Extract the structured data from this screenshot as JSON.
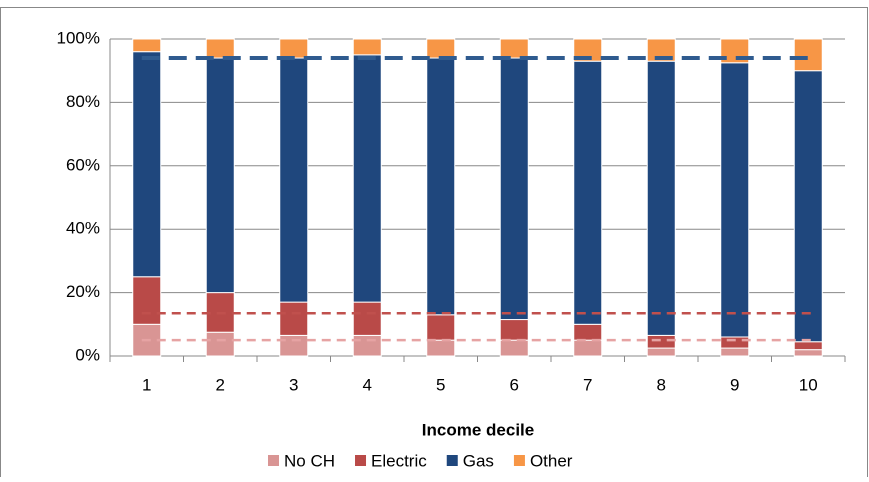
{
  "chart_data": {
    "type": "bar",
    "stacked": true,
    "x_label": "Income decile",
    "categories": [
      "1",
      "2",
      "3",
      "4",
      "5",
      "6",
      "7",
      "8",
      "9",
      "10"
    ],
    "series": [
      {
        "name": "No CH",
        "color": "#d99594",
        "values": [
          10,
          7.5,
          6.5,
          6.5,
          5,
          5,
          5,
          2.5,
          2.5,
          2
        ]
      },
      {
        "name": "Electric",
        "color": "#b94a48",
        "values": [
          15,
          12.5,
          10.5,
          10.5,
          8,
          6.5,
          5,
          4,
          3.5,
          2.5
        ]
      },
      {
        "name": "Gas",
        "color": "#1f477d",
        "values": [
          71,
          74,
          77,
          78,
          81,
          82.5,
          83,
          86.5,
          86.5,
          85.5
        ]
      },
      {
        "name": "Other",
        "color": "#f79646",
        "values": [
          4,
          6,
          6,
          5,
          6,
          6,
          7,
          7,
          7.5,
          10
        ]
      }
    ],
    "reference_lines": [
      {
        "value": 94,
        "color": "#2f5b8f"
      },
      {
        "value": 13.5,
        "color": "#c0504d"
      },
      {
        "value": 5,
        "color": "#e6a3a3"
      }
    ],
    "ylim": [
      0,
      100
    ],
    "yticks": [
      {
        "value": 0,
        "label": "0%"
      },
      {
        "value": 20,
        "label": "20%"
      },
      {
        "value": 40,
        "label": "40%"
      },
      {
        "value": 60,
        "label": "60%"
      },
      {
        "value": 80,
        "label": "80%"
      },
      {
        "value": 100,
        "label": "100%"
      }
    ],
    "grid": true,
    "legend": "bottom"
  }
}
